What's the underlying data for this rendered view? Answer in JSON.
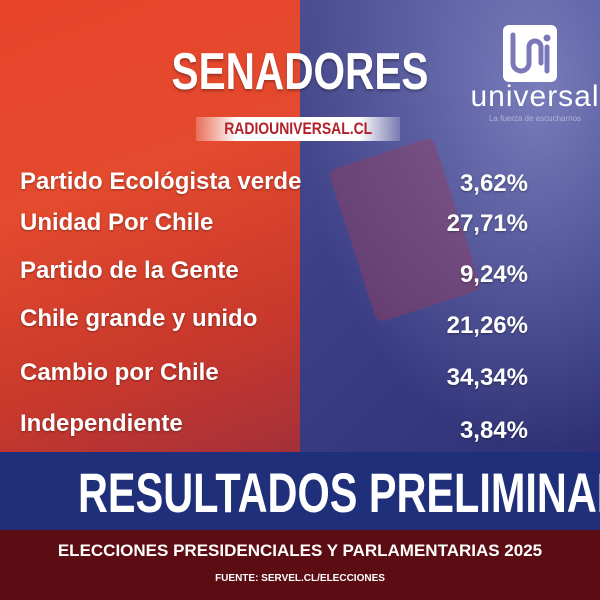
{
  "header": {
    "title": "SENADORES",
    "website": "RADIOUNIVERSAL.CL"
  },
  "logo": {
    "name": "universal",
    "tagline": "La fuerza de escucharnos"
  },
  "results": [
    {
      "party": "Partido Ecológista verde",
      "percent": "3,62%"
    },
    {
      "party": "Unidad Por Chile",
      "percent": "27,71%"
    },
    {
      "party": "Partido de la Gente",
      "percent": "9,24%"
    },
    {
      "party": "Chile grande y unido",
      "percent": "21,26%"
    },
    {
      "party": "Cambio por Chile",
      "percent": "34,34%"
    },
    {
      "party": "Independiente",
      "percent": "3,84%"
    }
  ],
  "footer": {
    "banner": "RESULTADOS PRELIMINARES",
    "subtitle": "ELECCIONES PRESIDENCIALES Y PARLAMENTARIAS 2025",
    "source": "FUENTE: SERVEL.CL/ELECCIONES"
  },
  "colors": {
    "red": "#e34a2e",
    "blue": "#1f2f7a",
    "dark_red": "#5c0d14"
  }
}
